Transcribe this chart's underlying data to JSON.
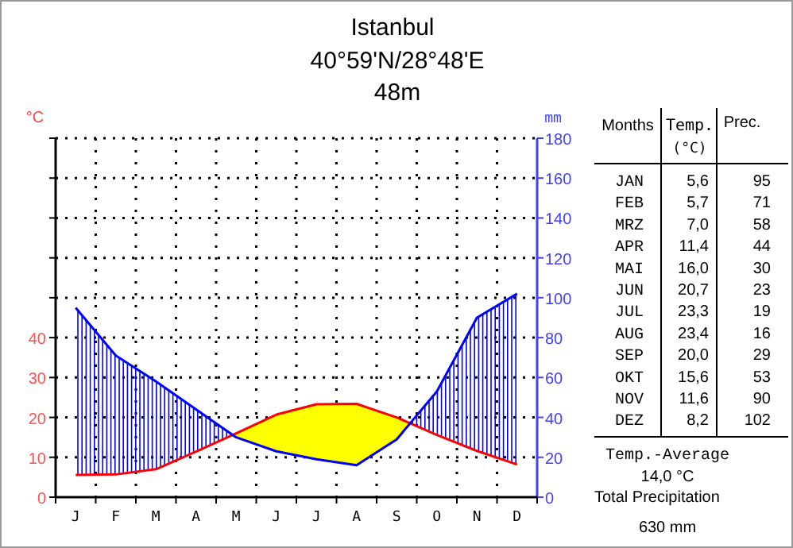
{
  "chart_data": {
    "type": "line",
    "title": "Istanbul",
    "subtitle": "40°59'N/28°48'E\n48m",
    "ylabel": "°C",
    "y2label": "mm",
    "categories": [
      "J",
      "F",
      "M",
      "A",
      "M",
      "J",
      "J",
      "A",
      "S",
      "O",
      "N",
      "D"
    ],
    "series": [
      {
        "name": "Temp.",
        "color": "#ff0000",
        "values": [
          5.6,
          5.7,
          7.0,
          11.4,
          16.0,
          20.7,
          23.3,
          23.4,
          20.0,
          15.6,
          11.6,
          8.2
        ]
      },
      {
        "name": "Prec.",
        "color": "#0000ff",
        "axis": "y2",
        "values": [
          95,
          71,
          58,
          44,
          30,
          23,
          19,
          16,
          29,
          53,
          90,
          102
        ]
      }
    ],
    "ylim": [
      0,
      90
    ],
    "yticks": [
      0,
      10,
      20,
      30,
      40
    ],
    "y2lim": [
      0,
      180
    ],
    "y2ticks": [
      0,
      20,
      40,
      60,
      80,
      100,
      120,
      140,
      160,
      180
    ],
    "grid": true,
    "marker": "none",
    "line_style": "solid",
    "annotations": [
      "Months",
      "(°C)",
      "JAN",
      "FEB",
      "MRZ",
      "APR",
      "MAI",
      "JUN",
      "JUL",
      "AUG",
      "SEP",
      "OKT",
      "NOV",
      "DEZ",
      "5,6",
      "5,7",
      "7,0",
      "11,4",
      "16,0",
      "20,7",
      "23,3",
      "23,4",
      "20,0",
      "15,6",
      "11,6",
      "8,2",
      "95",
      "71",
      "58",
      "44",
      "30",
      "23",
      "19",
      "16",
      "29",
      "53",
      "90",
      "102",
      "Temp.-Average",
      "14,0 °C",
      "Total Precipitation",
      "630 mm"
    ]
  }
}
